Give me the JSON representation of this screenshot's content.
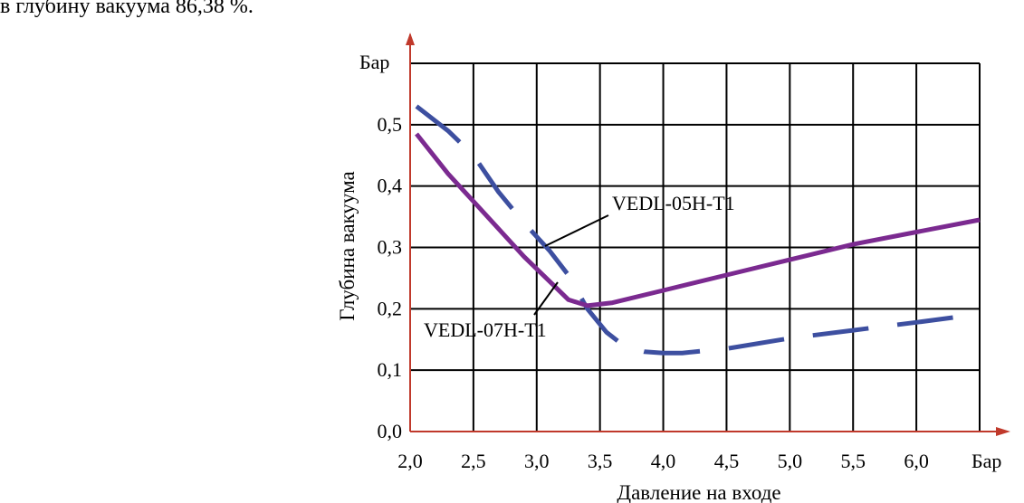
{
  "caption": "в глубину вакуума 86,38 %.",
  "colors": {
    "series1": "#3d4fa0",
    "series2": "#7b2a90",
    "axis": "#c0392b",
    "grid": "#000000"
  },
  "chart_data": {
    "type": "line",
    "title": "",
    "xlabel": "Давление на входе",
    "ylabel": "Глубина вакуума",
    "x_unit": "Бар",
    "y_unit": "Бар",
    "xlim": [
      2.0,
      6.5
    ],
    "ylim": [
      0.0,
      0.6
    ],
    "xticks": [
      2.0,
      2.5,
      3.0,
      3.5,
      4.0,
      4.5,
      5.0,
      5.5,
      6.0
    ],
    "xtick_labels": [
      "2,0",
      "2,5",
      "3,0",
      "3,5",
      "4,0",
      "4,5",
      "5,0",
      "5,5",
      "6,0"
    ],
    "yticks": [
      0.0,
      0.1,
      0.2,
      0.3,
      0.4,
      0.5
    ],
    "ytick_labels": [
      "0,0",
      "0,1",
      "0,2",
      "0,3",
      "0,4",
      "0,5"
    ],
    "grid": true,
    "series": [
      {
        "name": "VEDL-05H-T1",
        "style": "dashed",
        "x": [
          2.05,
          2.3,
          2.5,
          2.7,
          2.9,
          3.1,
          3.25,
          3.4,
          3.55,
          3.7,
          3.85,
          4.0,
          4.15,
          4.5,
          5.0,
          5.5,
          6.0,
          6.45
        ],
        "y": [
          0.53,
          0.49,
          0.45,
          0.39,
          0.34,
          0.295,
          0.255,
          0.2,
          0.162,
          0.138,
          0.13,
          0.128,
          0.128,
          0.135,
          0.152,
          0.165,
          0.178,
          0.19
        ]
      },
      {
        "name": "VEDL-07H-T1",
        "style": "solid",
        "x": [
          2.05,
          2.3,
          2.5,
          2.7,
          2.9,
          3.1,
          3.25,
          3.4,
          3.6,
          4.0,
          4.5,
          5.0,
          5.5,
          6.0,
          6.5
        ],
        "y": [
          0.485,
          0.42,
          0.375,
          0.33,
          0.285,
          0.245,
          0.215,
          0.205,
          0.21,
          0.23,
          0.255,
          0.28,
          0.305,
          0.325,
          0.345
        ]
      }
    ],
    "annotations": [
      {
        "text": "VEDL-05H-T1",
        "target": "VEDL-05H-T1"
      },
      {
        "text": "VEDL-07H-T1",
        "target": "VEDL-07H-T1"
      }
    ]
  }
}
